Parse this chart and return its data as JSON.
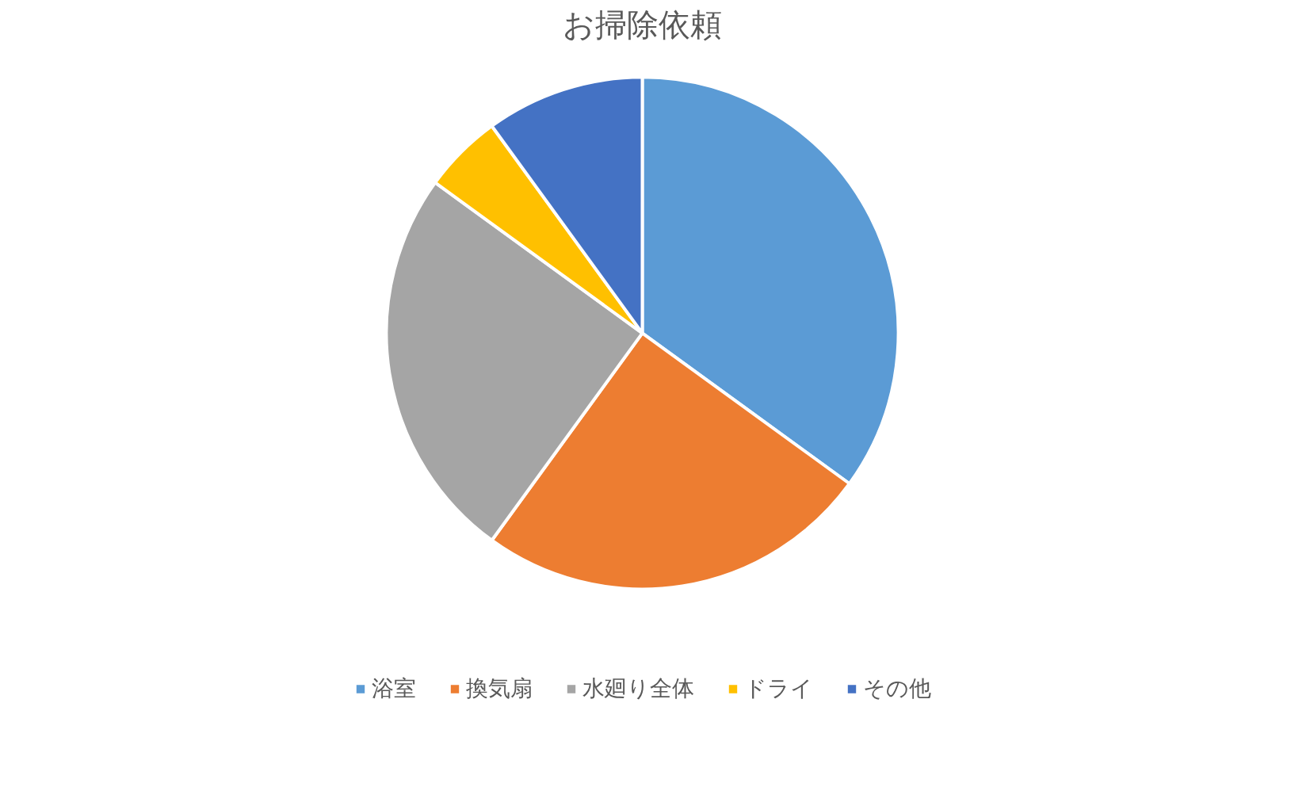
{
  "chart_data": {
    "type": "pie",
    "title": "お掃除依頼",
    "categories": [
      "浴室",
      "換気扇",
      "水廻り全体",
      "ドライ",
      "その他"
    ],
    "values": [
      35,
      25,
      25,
      5,
      10
    ],
    "colors": [
      "#5b9bd5",
      "#ed7d31",
      "#a5a5a5",
      "#ffc000",
      "#4472c4"
    ],
    "legend": "bottom"
  }
}
